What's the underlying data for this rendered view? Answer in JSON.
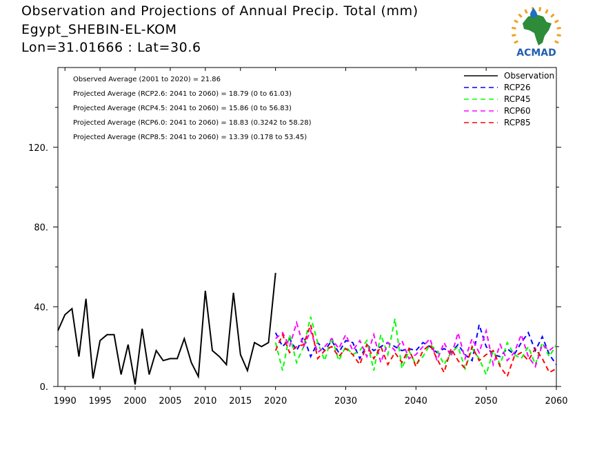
{
  "header": {
    "title_line1": "Observation and Projections of Annual Precip. Total (mm)",
    "title_line2": "Egypt_SHEBIN-EL-KOM",
    "title_line3": "Lon=31.01666 : Lat=30.6"
  },
  "logo": {
    "text": "ACMAD",
    "colors": {
      "africa": "#2e8b3a",
      "rays": "#f0a020",
      "drop": "#1f6fc0",
      "text": "#1f5fb0"
    }
  },
  "annotations": [
    "Observed Average (2001 to 2020) = 21.86",
    "Projected Average (RCP2.6: 2041 to 2060) = 18.79 (0 to 61.03)",
    "Projected Average (RCP4.5: 2041 to 2060) = 15.86 (0 to 56.83)",
    "Projected Average (RCP6.0: 2041 to 2060) = 18.83 (0.3242 to 58.28)",
    "Projected Average (RCP8.5: 2041 to 2060) = 13.39 (0.178 to 53.45)"
  ],
  "chart_data": {
    "type": "line",
    "xlim": [
      1989,
      2060
    ],
    "ylim": [
      0,
      160
    ],
    "x_ticks": [
      1990,
      1995,
      2000,
      2005,
      2010,
      2015,
      2020,
      2030,
      2040,
      2050,
      2060
    ],
    "x_tick_labels": [
      "1990",
      "1995",
      "2000",
      "2005",
      "2010",
      "2015",
      "2020",
      "2030",
      "2040",
      "2050",
      "2060"
    ],
    "y_ticks": [
      0,
      40,
      80,
      120
    ],
    "y_tick_labels": [
      "0.",
      "40.",
      "80.",
      "120."
    ],
    "legend_position": "top-right",
    "series": [
      {
        "name": "Observation",
        "color": "#000000",
        "dash": "solid",
        "x": [
          1989,
          1990,
          1991,
          1992,
          1993,
          1994,
          1995,
          1996,
          1997,
          1998,
          1999,
          2000,
          2001,
          2002,
          2003,
          2004,
          2005,
          2006,
          2007,
          2008,
          2009,
          2010,
          2011,
          2012,
          2013,
          2014,
          2015,
          2016,
          2017,
          2018,
          2019,
          2020
        ],
        "values": [
          28,
          36,
          39,
          15,
          44,
          4,
          23,
          26,
          26,
          6,
          21,
          1,
          29,
          6,
          18,
          13,
          14,
          14,
          24,
          12,
          5,
          48,
          18,
          15,
          11,
          47,
          16,
          8,
          22,
          20,
          22,
          57
        ]
      },
      {
        "name": "RCP26",
        "color": "#0000ff",
        "dash": "dashed",
        "x": [
          2020,
          2021,
          2022,
          2023,
          2024,
          2025,
          2026,
          2027,
          2028,
          2029,
          2030,
          2031,
          2032,
          2033,
          2034,
          2035,
          2036,
          2037,
          2038,
          2039,
          2040,
          2041,
          2042,
          2043,
          2044,
          2045,
          2046,
          2047,
          2048,
          2049,
          2050,
          2051,
          2052,
          2053,
          2054,
          2055,
          2056,
          2057,
          2058,
          2059,
          2060
        ],
        "values": [
          27,
          20,
          24,
          18,
          25,
          15,
          22,
          18,
          23,
          17,
          23,
          22,
          14,
          21,
          18,
          20,
          22,
          20,
          18,
          19,
          18,
          22,
          20,
          17,
          19,
          17,
          21,
          16,
          13,
          31,
          20,
          16,
          15,
          19,
          16,
          22,
          27,
          18,
          25,
          16,
          11
        ]
      },
      {
        "name": "RCP45",
        "color": "#00ff00",
        "dash": "dashed",
        "x": [
          2020,
          2021,
          2022,
          2023,
          2024,
          2025,
          2026,
          2027,
          2028,
          2029,
          2030,
          2031,
          2032,
          2033,
          2034,
          2035,
          2036,
          2037,
          2038,
          2039,
          2040,
          2041,
          2042,
          2043,
          2044,
          2045,
          2046,
          2047,
          2048,
          2049,
          2050,
          2051,
          2052,
          2053,
          2054,
          2055,
          2056,
          2057,
          2058,
          2059,
          2060
        ],
        "values": [
          22,
          8,
          26,
          12,
          20,
          35,
          22,
          13,
          25,
          13,
          20,
          16,
          18,
          23,
          8,
          26,
          16,
          34,
          9,
          18,
          11,
          15,
          21,
          18,
          11,
          17,
          20,
          9,
          19,
          14,
          6,
          18,
          11,
          22,
          16,
          14,
          20,
          11,
          22,
          15,
          21
        ]
      },
      {
        "name": "RCP60",
        "color": "#ff00ff",
        "dash": "dashed",
        "x": [
          2020,
          2021,
          2022,
          2023,
          2024,
          2025,
          2026,
          2027,
          2028,
          2029,
          2030,
          2031,
          2032,
          2033,
          2034,
          2035,
          2036,
          2037,
          2038,
          2039,
          2040,
          2041,
          2042,
          2043,
          2044,
          2045,
          2046,
          2047,
          2048,
          2049,
          2050,
          2051,
          2052,
          2053,
          2054,
          2055,
          2056,
          2057,
          2058,
          2059,
          2060
        ],
        "values": [
          24,
          27,
          20,
          32,
          20,
          28,
          17,
          20,
          24,
          19,
          26,
          18,
          23,
          15,
          26,
          12,
          22,
          18,
          23,
          14,
          16,
          20,
          24,
          13,
          22,
          15,
          27,
          14,
          24,
          17,
          28,
          11,
          21,
          13,
          17,
          26,
          15,
          10,
          21,
          18,
          21
        ]
      },
      {
        "name": "RCP85",
        "color": "#ff0000",
        "dash": "dashed",
        "x": [
          2020,
          2021,
          2022,
          2023,
          2024,
          2025,
          2026,
          2027,
          2028,
          2029,
          2030,
          2031,
          2032,
          2033,
          2034,
          2035,
          2036,
          2037,
          2038,
          2039,
          2040,
          2041,
          2042,
          2043,
          2044,
          2045,
          2046,
          2047,
          2048,
          2049,
          2050,
          2051,
          2052,
          2053,
          2054,
          2055,
          2056,
          2057,
          2058,
          2059,
          2060
        ],
        "values": [
          18,
          26,
          17,
          20,
          21,
          31,
          14,
          18,
          20,
          15,
          19,
          16,
          11,
          21,
          14,
          20,
          11,
          17,
          12,
          19,
          10,
          18,
          21,
          14,
          7,
          19,
          13,
          9,
          20,
          13,
          16,
          18,
          10,
          5,
          15,
          17,
          13,
          19,
          14,
          7,
          9
        ]
      }
    ]
  }
}
